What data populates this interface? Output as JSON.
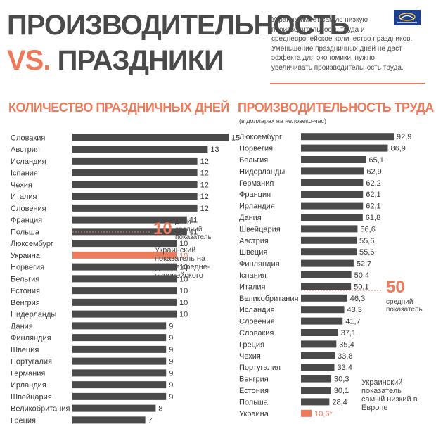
{
  "header": {
    "title_line1": "ПРОИЗВОДИТЕЛЬНОСТЬ",
    "title_vs": "VS.",
    "title_line2": "ПРАЗДНИКИ",
    "intro": "Украина имеет самую низкую производительность труда и средневропейское количество праздников. Уменьшение праздничных дней не даст эффекта для экономики, нужно увеличивать производительность труда."
  },
  "colors": {
    "accent": "#ee7a5c",
    "bar": "#4a4a4a",
    "highlight": "#ee7a5c"
  },
  "chart_data": [
    {
      "type": "bar",
      "orientation": "horizontal",
      "title": "КОЛИЧЕСТВО ПРАЗДНИЧНЫХ ДНЕЙ",
      "categories": [
        "Словакия",
        "Австрия",
        "Исландия",
        "Іспания",
        "Чехия",
        "Италия",
        "Словения",
        "Франция",
        "Польша",
        "Люксембург",
        "Украина",
        "Норвегия",
        "Бельгия",
        "Естония",
        "Венгрия",
        "Нидерланды",
        "Дания",
        "Финляндия",
        "Швеция",
        "Португалия",
        "Германия",
        "Ирландия",
        "Швейцария",
        "Великобритания",
        "Греция"
      ],
      "values": [
        15,
        13,
        12,
        12,
        12,
        12,
        12,
        11,
        11,
        10,
        10,
        10,
        10,
        10,
        10,
        10,
        9,
        9,
        9,
        9,
        9,
        9,
        9,
        8,
        7
      ],
      "value_labels": [
        "15",
        "13",
        "12",
        "12",
        "12",
        "12",
        "12",
        "11",
        "11",
        "10",
        "10",
        "10",
        "10",
        "10",
        "10",
        "10",
        "9",
        "9",
        "9",
        "9",
        "9",
        "9",
        "9",
        "8",
        "7"
      ],
      "highlight": "Украина",
      "average": {
        "value": "10",
        "label": "дней - средний показатель"
      },
      "annotation": "Украинский показатель на уровне средне-европейского"
    },
    {
      "type": "bar",
      "orientation": "horizontal",
      "title": "ПРОИЗВОДИТЕЛЬНОСТЬ ТРУДА",
      "subtitle": "(в долларах на человеко-час)",
      "categories": [
        "Люксембург",
        "Норвегия",
        "Бельгия",
        "Нидерланды",
        "Германия",
        "Франция",
        "Ирландия",
        "Дания",
        "Швейцария",
        "Австрия",
        "Швеция",
        "Финляндия",
        "Іспания",
        "Италия",
        "Великобритания",
        "Исландия",
        "Словения",
        "Словакия",
        "Греция",
        "Чехия",
        "Португалия",
        "Венгрия",
        "Естония",
        "Польша",
        "Украина"
      ],
      "values": [
        92.9,
        86.9,
        65.1,
        62.9,
        62.2,
        62.1,
        62.1,
        61.8,
        56.6,
        55.6,
        55.6,
        52.7,
        50.4,
        50.1,
        46.3,
        43.3,
        41.7,
        37.1,
        35.4,
        33.8,
        33.4,
        30.3,
        30.1,
        28.4,
        10.6
      ],
      "value_labels": [
        "92,9",
        "86,9",
        "65,1",
        "62,9",
        "62,2",
        "62,1",
        "62,1",
        "61,8",
        "56,6",
        "55,6",
        "55,6",
        "52,7",
        "50,4",
        "50,1",
        "46,3",
        "43,3",
        "41,7",
        "37,1",
        "35,4",
        "33,8",
        "33,4",
        "30,3",
        "30,1",
        "28,4",
        "10,6*"
      ],
      "highlight": "Украина",
      "average": {
        "value": "50",
        "label": "средний показатель"
      },
      "annotation": "Украинский показатель самый низкий в Европе"
    }
  ]
}
